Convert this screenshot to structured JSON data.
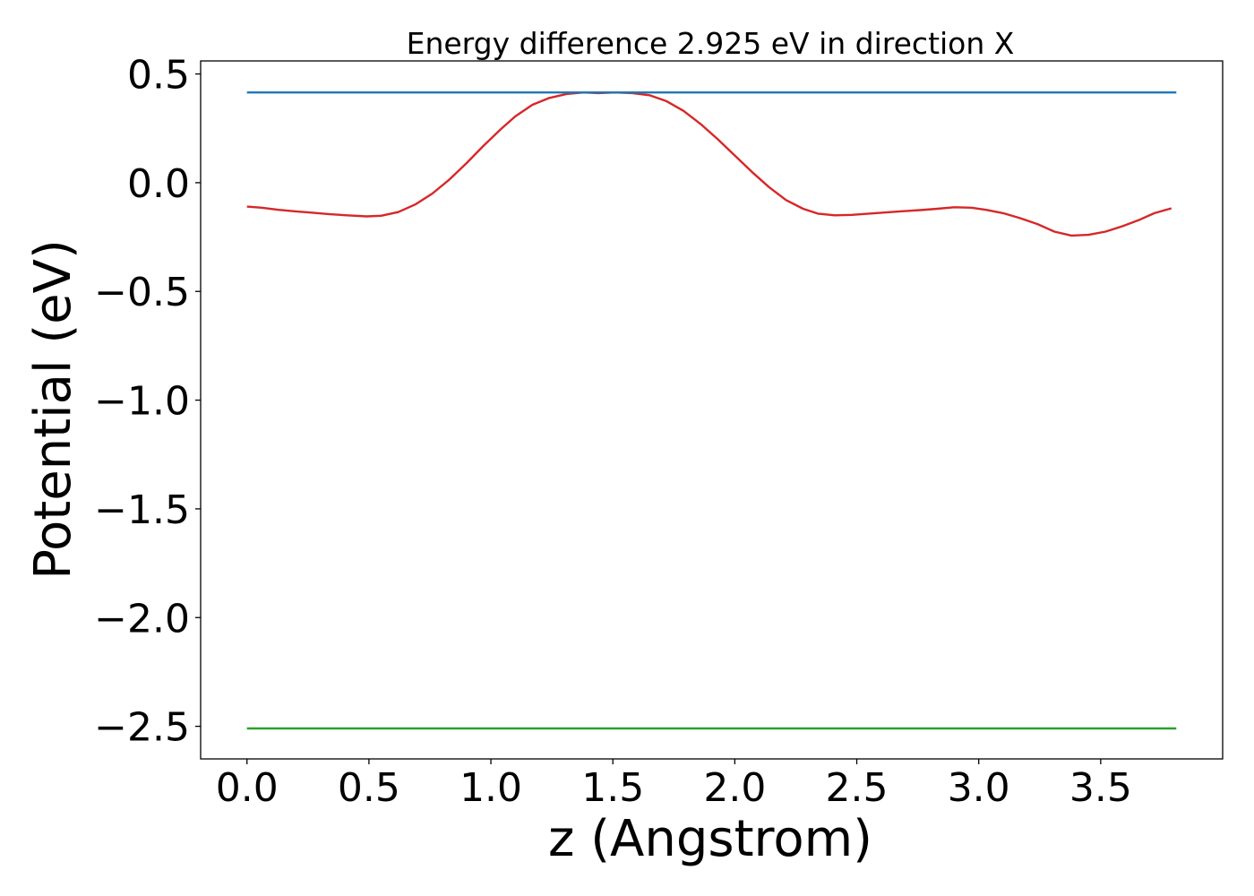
{
  "chart_data": {
    "type": "line",
    "title": "Energy difference 2.925 eV in direction X",
    "xlabel": "z (Angstrom)",
    "ylabel": "Potential (eV)",
    "xlim": [
      -0.19,
      4.0
    ],
    "ylim": [
      -2.65,
      0.56
    ],
    "xticks": [
      0.0,
      0.5,
      1.0,
      1.5,
      2.0,
      2.5,
      3.0,
      3.5
    ],
    "xtick_labels": [
      "0.0",
      "0.5",
      "1.0",
      "1.5",
      "2.0",
      "2.5",
      "3.0",
      "3.5"
    ],
    "yticks": [
      0.5,
      0.0,
      -0.5,
      -1.0,
      -1.5,
      -2.0,
      -2.5
    ],
    "ytick_labels": [
      "0.5",
      "0.0",
      "−0.5",
      "−1.0",
      "−1.5",
      "−2.0",
      "−2.5"
    ],
    "grid": false,
    "series": [
      {
        "color": "#d62728",
        "x": [
          0.0,
          0.06,
          0.13,
          0.2,
          0.27,
          0.34,
          0.41,
          0.49,
          0.55,
          0.62,
          0.69,
          0.76,
          0.83,
          0.9,
          0.97,
          1.04,
          1.1,
          1.17,
          1.24,
          1.31,
          1.38,
          1.44,
          1.51,
          1.58,
          1.65,
          1.72,
          1.79,
          1.86,
          1.93,
          2.0,
          2.07,
          2.14,
          2.21,
          2.28,
          2.34,
          2.41,
          2.48,
          2.55,
          2.62,
          2.69,
          2.76,
          2.83,
          2.9,
          2.97,
          3.03,
          3.1,
          3.17,
          3.24,
          3.31,
          3.38,
          3.45,
          3.52,
          3.59,
          3.66,
          3.72,
          3.79
        ],
        "y": [
          -0.11,
          -0.115,
          -0.125,
          -0.132,
          -0.138,
          -0.145,
          -0.15,
          -0.155,
          -0.152,
          -0.135,
          -0.1,
          -0.05,
          0.015,
          0.09,
          0.17,
          0.245,
          0.305,
          0.358,
          0.39,
          0.408,
          0.415,
          0.412,
          0.415,
          0.412,
          0.402,
          0.375,
          0.33,
          0.27,
          0.2,
          0.125,
          0.05,
          -0.02,
          -0.08,
          -0.12,
          -0.142,
          -0.15,
          -0.148,
          -0.142,
          -0.137,
          -0.131,
          -0.126,
          -0.12,
          -0.113,
          -0.115,
          -0.125,
          -0.14,
          -0.163,
          -0.19,
          -0.225,
          -0.243,
          -0.24,
          -0.225,
          -0.2,
          -0.17,
          -0.14,
          -0.118
        ]
      },
      {
        "color": "#1f77b4",
        "x": [
          0.0,
          3.81
        ],
        "y": [
          0.415,
          0.415
        ]
      },
      {
        "color": "#2ca02c",
        "x": [
          0.0,
          3.81
        ],
        "y": [
          -2.51,
          -2.51
        ]
      }
    ]
  }
}
